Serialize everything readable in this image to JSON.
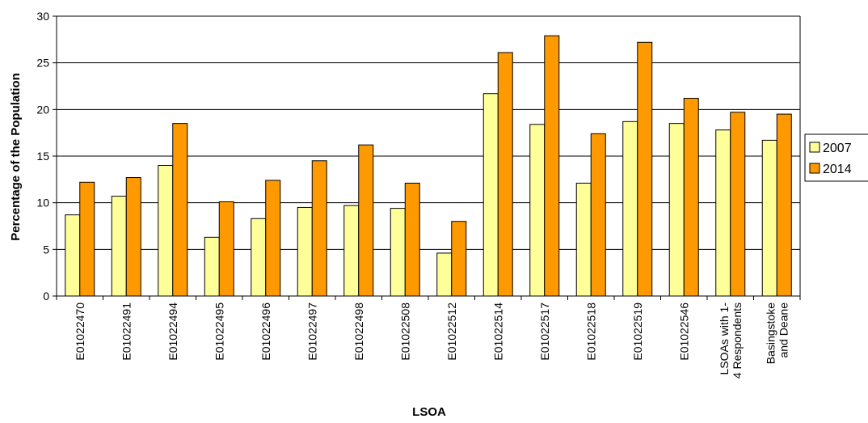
{
  "chart_data": {
    "type": "bar",
    "xlabel": "LSOA",
    "ylabel": "Percentage of the Population",
    "ylim": [
      0,
      30
    ],
    "yticks": [
      0,
      5,
      10,
      15,
      20,
      25,
      30
    ],
    "grid": true,
    "legend_position": "right",
    "categories": [
      "E01022470",
      "E01022491",
      "E01022494",
      "E01022495",
      "E01022496",
      "E01022497",
      "E01022498",
      "E01022508",
      "E01022512",
      "E01022514",
      "E01022517",
      "E01022518",
      "E01022519",
      "E01022546",
      "LSOAs with 1-4 Respondents",
      "Basingstoke and Deane"
    ],
    "category_lines": [
      [
        "E01022470"
      ],
      [
        "E01022491"
      ],
      [
        "E01022494"
      ],
      [
        "E01022495"
      ],
      [
        "E01022496"
      ],
      [
        "E01022497"
      ],
      [
        "E01022498"
      ],
      [
        "E01022508"
      ],
      [
        "E01022512"
      ],
      [
        "E01022514"
      ],
      [
        "E01022517"
      ],
      [
        "E01022518"
      ],
      [
        "E01022519"
      ],
      [
        "E01022546"
      ],
      [
        "LSOAs with 1-",
        "4 Respondents"
      ],
      [
        "Basingstoke",
        "and Deane"
      ]
    ],
    "series": [
      {
        "name": "2007",
        "color": "#FFFF99",
        "values": [
          8.7,
          10.7,
          14.0,
          6.3,
          8.3,
          9.5,
          9.7,
          9.4,
          4.6,
          21.7,
          18.4,
          12.1,
          18.7,
          18.5,
          17.8,
          16.7
        ]
      },
      {
        "name": "2014",
        "color": "#FF9900",
        "values": [
          12.2,
          12.7,
          18.5,
          10.1,
          12.4,
          14.5,
          16.2,
          12.1,
          8.0,
          26.1,
          27.9,
          17.4,
          27.2,
          21.2,
          19.7,
          19.5
        ]
      }
    ],
    "colors": {
      "plot_background": "#FFFFFF",
      "gridline": "#000000",
      "bar_outline": "#000000"
    }
  }
}
